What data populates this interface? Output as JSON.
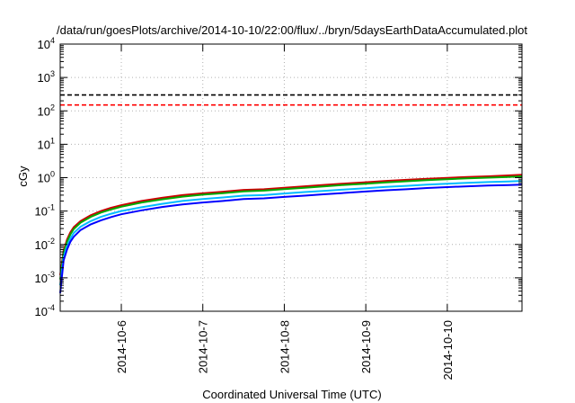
{
  "chart_data": {
    "type": "line",
    "title": "/data/run/goesPlots/archive/2014-10-10/22:00/flux/../bryn/5daysEarthDataAccumulated.plot",
    "xlabel": "Coordinated Universal Time (UTC)",
    "ylabel": "cGy",
    "yscale": "log",
    "ylim": [
      0.0001,
      10000
    ],
    "xlim": [
      "2014-10-05T06:00",
      "2014-10-10T22:00"
    ],
    "x_ticks": [
      "2014-10-6",
      "2014-10-7",
      "2014-10-8",
      "2014-10-9",
      "2014-10-10"
    ],
    "grid": true,
    "reference_lines": [
      {
        "y": 300,
        "color": "#000000",
        "style": "dashed"
      },
      {
        "y": 150,
        "color": "#ff0000",
        "style": "dashed"
      }
    ],
    "x": [
      "2014-10-05T06:00",
      "2014-10-05T07:00",
      "2014-10-05T08:00",
      "2014-10-05T09:00",
      "2014-10-05T10:00",
      "2014-10-05T12:00",
      "2014-10-05T15:00",
      "2014-10-05T18:00",
      "2014-10-05T21:00",
      "2014-10-06T00:00",
      "2014-10-06T06:00",
      "2014-10-06T12:00",
      "2014-10-06T18:00",
      "2014-10-07T00:00",
      "2014-10-07T06:00",
      "2014-10-07T12:00",
      "2014-10-07T18:00",
      "2014-10-08T00:00",
      "2014-10-08T06:00",
      "2014-10-08T12:00",
      "2014-10-08T18:00",
      "2014-10-09T00:00",
      "2014-10-09T06:00",
      "2014-10-09T12:00",
      "2014-10-09T18:00",
      "2014-10-10T00:00",
      "2014-10-10T06:00",
      "2014-10-10T12:00",
      "2014-10-10T18:00",
      "2014-10-10T22:00"
    ],
    "series": [
      {
        "color": "#cc0000",
        "values": [
          0.0012,
          0.0065,
          0.014,
          0.023,
          0.033,
          0.05,
          0.075,
          0.1,
          0.125,
          0.15,
          0.2,
          0.25,
          0.3,
          0.34,
          0.38,
          0.43,
          0.45,
          0.5,
          0.55,
          0.61,
          0.67,
          0.73,
          0.8,
          0.86,
          0.93,
          0.99,
          1.05,
          1.1,
          1.17,
          1.22
        ]
      },
      {
        "color": "#00aa00",
        "values": [
          0.0009,
          0.0055,
          0.012,
          0.02,
          0.029,
          0.045,
          0.067,
          0.09,
          0.112,
          0.135,
          0.18,
          0.225,
          0.27,
          0.31,
          0.345,
          0.39,
          0.41,
          0.455,
          0.5,
          0.55,
          0.61,
          0.66,
          0.72,
          0.78,
          0.84,
          0.9,
          0.95,
          1.0,
          1.05,
          1.1
        ]
      },
      {
        "color": "#00bbff",
        "values": [
          0.0006,
          0.0042,
          0.009,
          0.015,
          0.022,
          0.034,
          0.05,
          0.067,
          0.083,
          0.1,
          0.13,
          0.165,
          0.2,
          0.23,
          0.255,
          0.29,
          0.3,
          0.335,
          0.37,
          0.405,
          0.445,
          0.485,
          0.53,
          0.57,
          0.62,
          0.66,
          0.7,
          0.74,
          0.77,
          0.8
        ]
      },
      {
        "color": "#0000ff",
        "values": [
          0.00035,
          0.0033,
          0.007,
          0.012,
          0.017,
          0.027,
          0.04,
          0.053,
          0.066,
          0.08,
          0.105,
          0.132,
          0.158,
          0.18,
          0.2,
          0.23,
          0.24,
          0.265,
          0.29,
          0.32,
          0.35,
          0.385,
          0.42,
          0.45,
          0.49,
          0.52,
          0.55,
          0.58,
          0.6,
          0.62
        ]
      }
    ]
  }
}
